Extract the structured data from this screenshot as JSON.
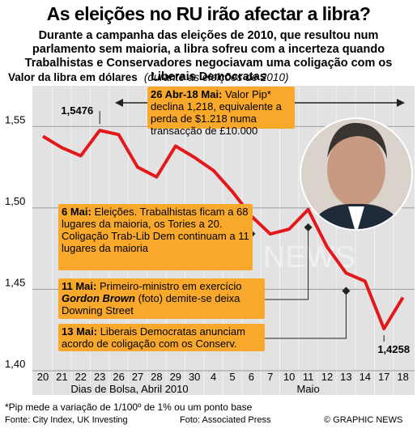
{
  "chart_data": {
    "type": "line",
    "title": "As eleições no RU irão afectar a libra?",
    "subtitle": "Durante a campanha das eleições de 2010, que resultou num parlamento sem maioria, a libra sofreu com a incerteza quando Trabalhistas e Conservadores negociavam uma coligação com os Liberais Democratas",
    "y_label": "Valor da libra em dólares",
    "y_label_note": "(durante as eleições de 2010)",
    "x_label": "Dias de Bolsa, Abril 2010",
    "x_label_2": "Maio",
    "categories": [
      "20",
      "21",
      "22",
      "23",
      "26",
      "27",
      "28",
      "29",
      "30",
      "4",
      "5",
      "6",
      "7",
      "10",
      "11",
      "12",
      "13",
      "14",
      "17",
      "18"
    ],
    "values": [
      1.544,
      1.537,
      1.532,
      1.5476,
      1.545,
      1.525,
      1.519,
      1.538,
      1.531,
      1.523,
      1.51,
      1.495,
      1.484,
      1.487,
      1.499,
      1.476,
      1.46,
      1.455,
      1.4258,
      1.445
    ],
    "value_labels": [
      null,
      null,
      null,
      "1,5476",
      null,
      null,
      null,
      null,
      null,
      null,
      null,
      null,
      null,
      null,
      null,
      null,
      null,
      null,
      "1,4258",
      null
    ],
    "color": "#e4171b",
    "ylim": [
      1.4,
      1.575
    ],
    "yticks": [
      {
        "value": 1.4,
        "label": "1,40"
      },
      {
        "value": 1.45,
        "label": "1,45"
      },
      {
        "value": 1.5,
        "label": "1,50"
      },
      {
        "value": 1.55,
        "label": "1,55"
      }
    ],
    "grid": true,
    "annotations": [
      {
        "bold": "26 Abr-18 Mai:",
        "text": "Valor Pip* declina 1,218, equivalente a perda de $1.218 numa transacção de £10.000"
      },
      {
        "bold": "6 Mai:",
        "text": "Eleições. Trabalhistas ficam a 68 lugares da maioria, os Tories a 20. Coligação Trab-Lib Dem continuam a 11 lugares da maioria"
      },
      {
        "bold": "11 Mai:",
        "text": "Primeiro-ministro em exercício",
        "emphasis": "Gordon Brown",
        "text_after": "(foto) demite-se deixa Downing Street"
      },
      {
        "bold": "13 Mai:",
        "text": "Liberais Democratas anunciam acordo de coligação com os Conserv."
      }
    ],
    "footnote": "*Pip mede a variação de 1/100º de 1% ou um ponto base",
    "source": "Fonte: City Index, UK Investing",
    "photo_credit": "Foto: Associated Press",
    "credit": "© GRAPHIC NEWS",
    "watermark": "GRAPHIC NEWS"
  }
}
